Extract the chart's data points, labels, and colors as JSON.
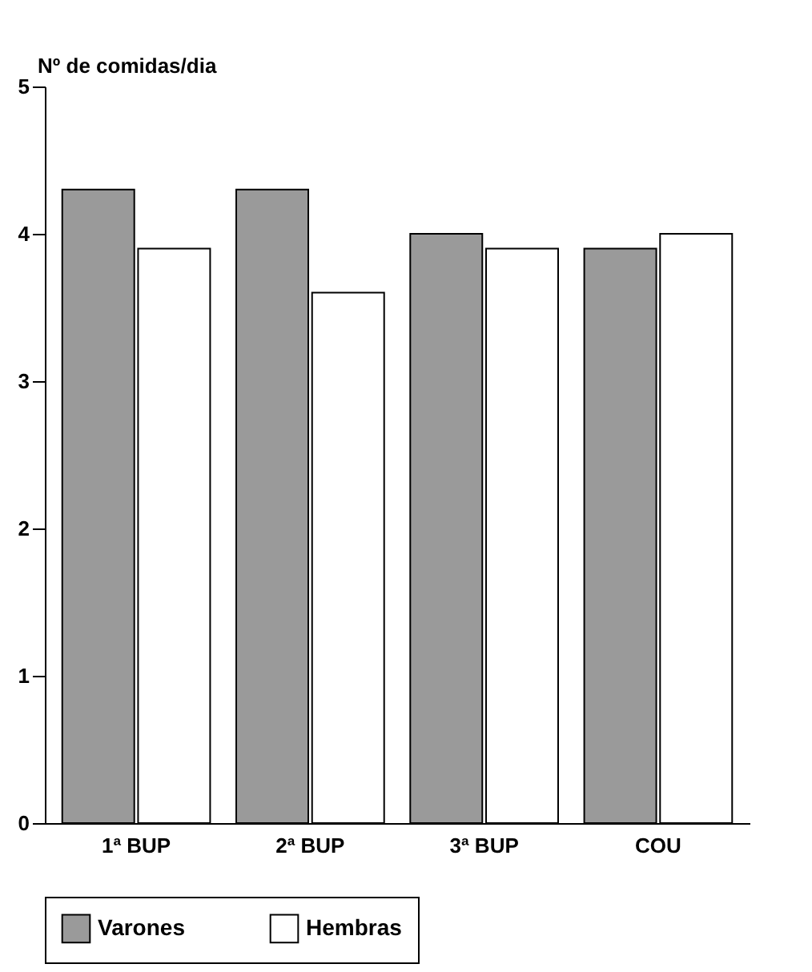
{
  "chart_data": {
    "type": "bar",
    "ylabel": "Nº de comidas/dia",
    "categories": [
      "1ª BUP",
      "2ª BUP",
      "3ª BUP",
      "COU"
    ],
    "series": [
      {
        "name": "Varones",
        "color": "#9a9a9a",
        "values": [
          4.3,
          4.3,
          4.0,
          3.9
        ]
      },
      {
        "name": "Hembras",
        "color": "#ffffff",
        "values": [
          3.9,
          3.6,
          3.9,
          4.0
        ]
      }
    ],
    "ylim": [
      0,
      5
    ],
    "yticks": [
      0,
      1,
      2,
      3,
      4,
      5
    ],
    "grid": false,
    "legend": "bottom"
  }
}
